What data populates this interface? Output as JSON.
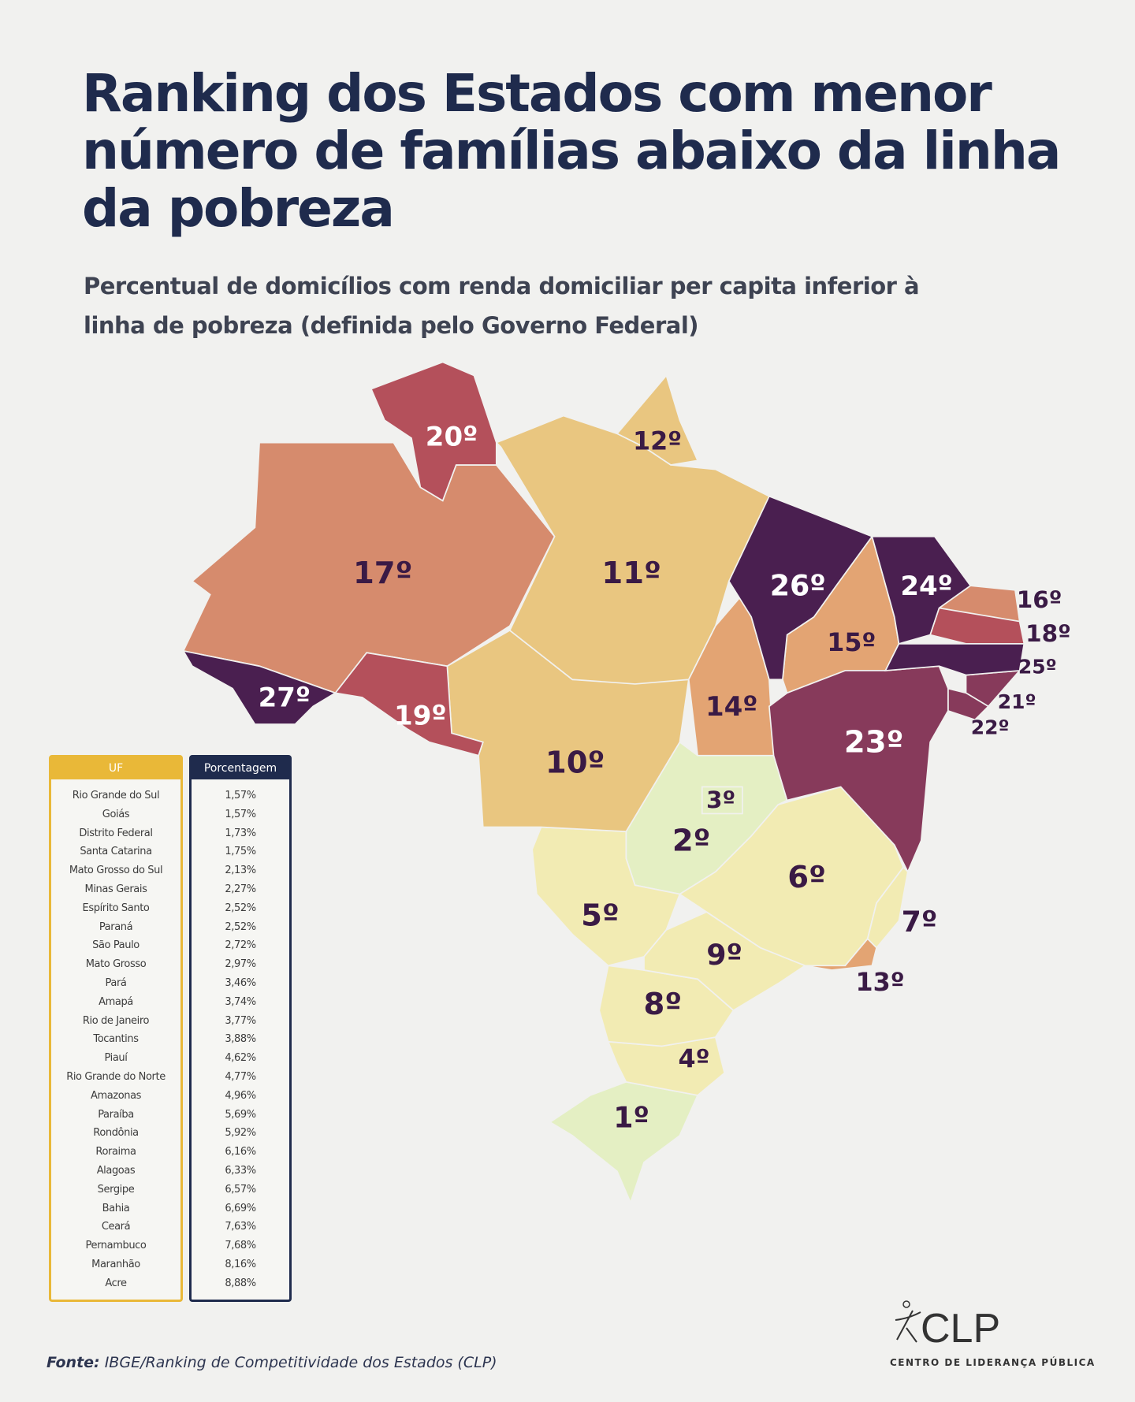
{
  "header": {
    "title": "Ranking dos Estados com menor número de famílias abaixo da linha da pobreza",
    "subtitle": "Percentual de domicílios com renda domiciliar per capita inferior à linha de pobreza (definida pelo Governo Federal)"
  },
  "chart_data": {
    "type": "table",
    "title": "Ranking dos Estados com menor número de famílias abaixo da linha da pobreza",
    "columns": [
      "UF",
      "Porcentagem"
    ],
    "rows": [
      {
        "uf": "Rio Grande do Sul",
        "pct": "1,57%",
        "rank": "1º",
        "value": 1.57
      },
      {
        "uf": "Goiás",
        "pct": "1,57%",
        "rank": "2º",
        "value": 1.57
      },
      {
        "uf": "Distrito Federal",
        "pct": "1,73%",
        "rank": "3º",
        "value": 1.73
      },
      {
        "uf": "Santa Catarina",
        "pct": "1,75%",
        "rank": "4º",
        "value": 1.75
      },
      {
        "uf": "Mato Grosso do Sul",
        "pct": "2,13%",
        "rank": "5º",
        "value": 2.13
      },
      {
        "uf": "Minas Gerais",
        "pct": "2,27%",
        "rank": "6º",
        "value": 2.27
      },
      {
        "uf": "Espírito Santo",
        "pct": "2,52%",
        "rank": "7º",
        "value": 2.52
      },
      {
        "uf": "Paraná",
        "pct": "2,52%",
        "rank": "8º",
        "value": 2.52
      },
      {
        "uf": "São Paulo",
        "pct": "2,72%",
        "rank": "9º",
        "value": 2.72
      },
      {
        "uf": "Mato Grosso",
        "pct": "2,97%",
        "rank": "10º",
        "value": 2.97
      },
      {
        "uf": "Pará",
        "pct": "3,46%",
        "rank": "11º",
        "value": 3.46
      },
      {
        "uf": "Amapá",
        "pct": "3,74%",
        "rank": "12º",
        "value": 3.74
      },
      {
        "uf": "Rio de Janeiro",
        "pct": "3,77%",
        "rank": "13º",
        "value": 3.77
      },
      {
        "uf": "Tocantins",
        "pct": "3,88%",
        "rank": "14º",
        "value": 3.88
      },
      {
        "uf": "Piauí",
        "pct": "4,62%",
        "rank": "15º",
        "value": 4.62
      },
      {
        "uf": "Rio Grande do Norte",
        "pct": "4,77%",
        "rank": "16º",
        "value": 4.77
      },
      {
        "uf": "Amazonas",
        "pct": "4,96%",
        "rank": "17º",
        "value": 4.96
      },
      {
        "uf": "Paraíba",
        "pct": "5,69%",
        "rank": "18º",
        "value": 5.69
      },
      {
        "uf": "Rondônia",
        "pct": "5,92%",
        "rank": "19º",
        "value": 5.92
      },
      {
        "uf": "Roraima",
        "pct": "6,16%",
        "rank": "20º",
        "value": 6.16
      },
      {
        "uf": "Alagoas",
        "pct": "6,33%",
        "rank": "21º",
        "value": 6.33
      },
      {
        "uf": "Sergipe",
        "pct": "6,57%",
        "rank": "22º",
        "value": 6.57
      },
      {
        "uf": "Bahia",
        "pct": "6,69%",
        "rank": "23º",
        "value": 6.69
      },
      {
        "uf": "Ceará",
        "pct": "7,63%",
        "rank": "24º",
        "value": 7.63
      },
      {
        "uf": "Pernambuco",
        "pct": "7,68%",
        "rank": "25º",
        "value": 7.68
      },
      {
        "uf": "Maranhão",
        "pct": "8,16%",
        "rank": "26º",
        "value": 8.16
      },
      {
        "uf": "Acre",
        "pct": "8,88%",
        "rank": "27º",
        "value": 8.88
      }
    ],
    "color_scale": [
      "#e4efc3",
      "#f2ebb3",
      "#e9c680",
      "#e3a473",
      "#d68b6d",
      "#b4505b",
      "#873a5b",
      "#4a1f50"
    ]
  },
  "footer": {
    "source_label": "Fonte:",
    "source_text": "IBGE/Ranking de Competitividade dos Estados (CLP)",
    "logo_text": "CLP",
    "logo_caption": "CENTRO DE LIDERANÇA PÚBLICA"
  }
}
